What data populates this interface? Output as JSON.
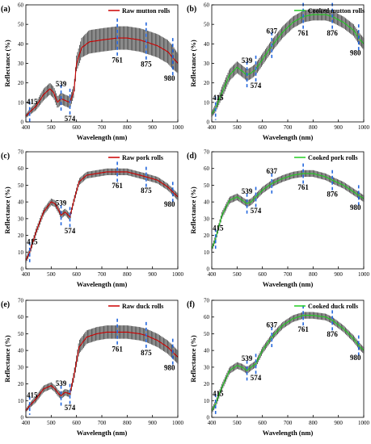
{
  "figure": {
    "panels_label": "6 spectral reflectance panels"
  },
  "chart_data": [
    {
      "type": "line",
      "panel_label": "(a)",
      "legend": "Raw mutton rolls",
      "line_color": "#cc0000",
      "band_color": "#4a4a4a",
      "xlabel": "Wavelength (nm)",
      "ylabel": "Reflectance (%)",
      "xlim": [
        400,
        1000
      ],
      "ylim": [
        0,
        60
      ],
      "xticks": [
        400,
        500,
        600,
        700,
        800,
        900,
        1000
      ],
      "yticks": [
        0,
        10,
        20,
        30,
        40,
        50,
        60
      ],
      "annotations": [
        "415",
        "539",
        "574",
        "761",
        "875",
        "980"
      ],
      "annotation_x": [
        415,
        539,
        574,
        761,
        875,
        980
      ],
      "x": [
        400,
        415,
        440,
        470,
        495,
        510,
        525,
        539,
        555,
        574,
        590,
        600,
        620,
        650,
        700,
        761,
        800,
        850,
        875,
        920,
        960,
        980,
        1000
      ],
      "y": [
        3,
        5,
        8,
        14,
        17,
        15,
        10,
        12,
        11,
        10,
        16,
        30,
        38,
        41,
        42,
        43,
        43,
        42,
        41,
        39,
        36,
        33,
        30
      ],
      "band_half_width": [
        1,
        1.5,
        2,
        3,
        3,
        3,
        3,
        3,
        3,
        3,
        3,
        4,
        5,
        6,
        6,
        6,
        6,
        6,
        6,
        6,
        6,
        6,
        5
      ]
    },
    {
      "type": "line",
      "panel_label": "(b)",
      "legend": "Cooked mutton rolls",
      "line_color": "#22cc22",
      "band_color": "#4a4a4a",
      "xlabel": "Wavelength (nm)",
      "ylabel": "Reflectance (%)",
      "xlim": [
        400,
        1000
      ],
      "ylim": [
        0,
        60
      ],
      "xticks": [
        400,
        500,
        600,
        700,
        800,
        900,
        1000
      ],
      "yticks": [
        0,
        10,
        20,
        30,
        40,
        50,
        60
      ],
      "annotations": [
        "415",
        "539",
        "574",
        "637",
        "761",
        "876",
        "980"
      ],
      "annotation_x": [
        415,
        539,
        574,
        637,
        761,
        876,
        980
      ],
      "x": [
        400,
        415,
        440,
        470,
        500,
        520,
        539,
        555,
        574,
        600,
        637,
        680,
        720,
        761,
        800,
        850,
        876,
        920,
        960,
        980,
        1000
      ],
      "y": [
        4,
        7,
        15,
        24,
        28,
        26,
        24,
        25,
        27,
        32,
        39,
        46,
        51,
        54,
        55,
        55,
        54,
        51,
        47,
        43,
        40
      ],
      "band_half_width": [
        1.5,
        2,
        3,
        3,
        3,
        3,
        3,
        3,
        3,
        3,
        3,
        3,
        3,
        3,
        3,
        3,
        3,
        3,
        3,
        3,
        3
      ]
    },
    {
      "type": "line",
      "panel_label": "(c)",
      "legend": "Raw pork rolls",
      "line_color": "#cc0000",
      "band_color": "#4a4a4a",
      "xlabel": "Wavelength (nm)",
      "ylabel": "Reflectance (%)",
      "xlim": [
        400,
        1000
      ],
      "ylim": [
        0,
        70
      ],
      "xticks": [
        400,
        500,
        600,
        700,
        800,
        900,
        1000
      ],
      "yticks": [
        0,
        10,
        20,
        30,
        40,
        50,
        60,
        70
      ],
      "annotations": [
        "415",
        "539",
        "574",
        "761",
        "875",
        "980"
      ],
      "annotation_x": [
        415,
        539,
        574,
        761,
        875,
        980
      ],
      "x": [
        400,
        415,
        440,
        470,
        500,
        515,
        530,
        539,
        555,
        574,
        590,
        610,
        640,
        680,
        720,
        761,
        800,
        850,
        875,
        920,
        960,
        980,
        1000
      ],
      "y": [
        5,
        10,
        22,
        34,
        40,
        39,
        35,
        32,
        34,
        31,
        41,
        52,
        56,
        57,
        58,
        58,
        58,
        56,
        55,
        53,
        49,
        46,
        43
      ],
      "band_half_width": [
        1.5,
        2,
        2,
        2,
        2,
        2,
        2,
        2,
        2,
        2,
        2,
        2,
        2,
        2,
        2,
        2,
        2,
        2,
        2,
        2,
        2,
        2,
        2
      ]
    },
    {
      "type": "line",
      "panel_label": "(d)",
      "legend": "Cooked pork rolls",
      "line_color": "#22cc22",
      "band_color": "#4a4a4a",
      "xlabel": "Wavelength (nm)",
      "ylabel": "Reflectance (%)",
      "xlim": [
        400,
        1000
      ],
      "ylim": [
        0,
        70
      ],
      "xticks": [
        400,
        500,
        600,
        700,
        800,
        900,
        1000
      ],
      "yticks": [
        0,
        10,
        20,
        30,
        40,
        50,
        60,
        70
      ],
      "annotations": [
        "415",
        "539",
        "574",
        "637",
        "761",
        "876",
        "980"
      ],
      "annotation_x": [
        415,
        539,
        574,
        637,
        761,
        876,
        980
      ],
      "x": [
        400,
        415,
        440,
        470,
        500,
        520,
        539,
        555,
        574,
        600,
        637,
        680,
        720,
        761,
        800,
        850,
        876,
        920,
        960,
        980,
        1000
      ],
      "y": [
        12,
        18,
        32,
        41,
        43,
        41,
        39,
        40,
        43,
        47,
        51,
        54,
        56,
        57,
        57,
        55,
        53,
        50,
        46,
        44,
        42
      ],
      "band_half_width": [
        1.5,
        2,
        2,
        2,
        2,
        2,
        2,
        2,
        2,
        2,
        2,
        2,
        2,
        2,
        2,
        2,
        2,
        2,
        2,
        2,
        2
      ]
    },
    {
      "type": "line",
      "panel_label": "(e)",
      "legend": "Raw duck rolls",
      "line_color": "#cc0000",
      "band_color": "#4a4a4a",
      "xlabel": "Wavelength (nm)",
      "ylabel": "Reflectance (%)",
      "xlim": [
        400,
        1000
      ],
      "ylim": [
        0,
        70
      ],
      "xticks": [
        400,
        500,
        600,
        700,
        800,
        900,
        1000
      ],
      "yticks": [
        0,
        10,
        20,
        30,
        40,
        50,
        60,
        70
      ],
      "annotations": [
        "415",
        "539",
        "574",
        "761",
        "875",
        "980"
      ],
      "annotation_x": [
        415,
        539,
        574,
        761,
        875,
        980
      ],
      "x": [
        400,
        415,
        440,
        470,
        500,
        515,
        530,
        539,
        555,
        574,
        590,
        610,
        640,
        680,
        720,
        761,
        800,
        850,
        875,
        920,
        960,
        980,
        1000
      ],
      "y": [
        4,
        7,
        11,
        17,
        19,
        17,
        14,
        13,
        15,
        14,
        25,
        42,
        48,
        50,
        51,
        51,
        51,
        50,
        49,
        46,
        42,
        39,
        36
      ],
      "band_half_width": [
        1,
        1.5,
        2,
        2,
        2,
        2,
        2,
        2,
        2,
        2,
        3,
        4,
        4,
        4,
        4,
        4,
        4,
        4,
        4,
        4,
        4,
        4,
        4
      ]
    },
    {
      "type": "line",
      "panel_label": "(f)",
      "legend": "Cooked duck rolls",
      "line_color": "#22cc22",
      "band_color": "#4a4a4a",
      "xlabel": "Wavelength (nm)",
      "ylabel": "Reflectance (%)",
      "xlim": [
        400,
        1000
      ],
      "ylim": [
        0,
        70
      ],
      "xticks": [
        400,
        500,
        600,
        700,
        800,
        900,
        1000
      ],
      "yticks": [
        0,
        10,
        20,
        30,
        40,
        50,
        60,
        70
      ],
      "annotations": [
        "415",
        "539",
        "574",
        "637",
        "761",
        "876",
        "980"
      ],
      "annotation_x": [
        415,
        539,
        574,
        637,
        761,
        876,
        980
      ],
      "x": [
        400,
        415,
        440,
        470,
        500,
        520,
        539,
        555,
        574,
        600,
        637,
        680,
        720,
        761,
        800,
        850,
        876,
        920,
        960,
        980,
        1000
      ],
      "y": [
        4,
        8,
        18,
        28,
        31,
        30,
        28,
        30,
        32,
        40,
        48,
        55,
        59,
        61,
        61,
        60,
        58,
        53,
        47,
        43,
        40
      ],
      "band_half_width": [
        1.5,
        2,
        2,
        2,
        2,
        2,
        2,
        2,
        2,
        2,
        2,
        2,
        2,
        2,
        2,
        2,
        2,
        2,
        2,
        2,
        2
      ]
    }
  ]
}
